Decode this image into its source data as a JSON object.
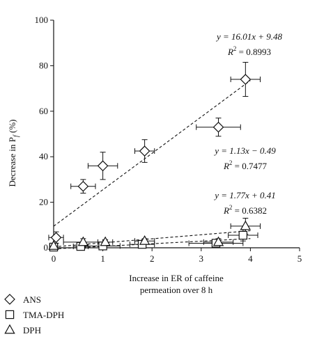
{
  "chart_data": {
    "type": "scatter",
    "xlabel_lines": [
      "Increase in ER of caffeine",
      "permeation over 8 h"
    ],
    "ylabel": "Decrease in P",
    "ylabel_subscript": "f",
    "ylabel_unit": " (%)",
    "xlim": [
      0,
      5
    ],
    "ylim": [
      0,
      100
    ],
    "xticks": [
      "0",
      "1",
      "2",
      "3",
      "4",
      "5"
    ],
    "yticks": [
      "0",
      "20",
      "40",
      "60",
      "80",
      "100"
    ],
    "grid": false,
    "legend_position": "bottom-left",
    "series": [
      {
        "name": "ANS",
        "marker": "diamond",
        "points": [
          {
            "x": 0.05,
            "y": 4.5,
            "xerr": 0.15,
            "yerr": 2.5
          },
          {
            "x": 0.6,
            "y": 27,
            "xerr": 0.25,
            "yerr": 3
          },
          {
            "x": 1.0,
            "y": 36,
            "xerr": 0.3,
            "yerr": 6
          },
          {
            "x": 1.85,
            "y": 42.5,
            "xerr": 0.2,
            "yerr": 5
          },
          {
            "x": 3.35,
            "y": 53,
            "xerr": 0.45,
            "yerr": 4
          },
          {
            "x": 3.9,
            "y": 74,
            "xerr": 0.3,
            "yerr": 7.5
          }
        ],
        "fit": {
          "slope": 16.01,
          "intercept": 9.48,
          "equation": "y = 16.01x + 9.48",
          "r2_label": "R",
          "r2_value": " = 0.8993"
        }
      },
      {
        "name": "TMA-DPH",
        "marker": "square",
        "points": [
          {
            "x": 0.0,
            "y": 0.3,
            "xerr": 0.08,
            "yerr": 0.8
          },
          {
            "x": 0.55,
            "y": 0.6,
            "xerr": 0.15,
            "yerr": 1
          },
          {
            "x": 1.0,
            "y": 0.8,
            "xerr": 0.35,
            "yerr": 1
          },
          {
            "x": 1.8,
            "y": 1.5,
            "xerr": 0.25,
            "yerr": 1
          },
          {
            "x": 3.3,
            "y": 2.0,
            "xerr": 0.55,
            "yerr": 1.5
          },
          {
            "x": 3.85,
            "y": 5.5,
            "xerr": 0.3,
            "yerr": 2.5
          }
        ],
        "fit": {
          "slope": 1.13,
          "intercept": -0.49,
          "equation": "y = 1.13x − 0.49",
          "r2_label": "R",
          "r2_value": " = 0.7477"
        }
      },
      {
        "name": "DPH",
        "marker": "triangle",
        "points": [
          {
            "x": 0.0,
            "y": 0.8,
            "xerr": 0.08,
            "yerr": 0.8
          },
          {
            "x": 0.6,
            "y": 2.5,
            "xerr": 0.4,
            "yerr": 1.5
          },
          {
            "x": 1.05,
            "y": 2.5,
            "xerr": 0.15,
            "yerr": 1
          },
          {
            "x": 1.85,
            "y": 3.0,
            "xerr": 0.2,
            "yerr": 1
          },
          {
            "x": 3.35,
            "y": 2.5,
            "xerr": 0.3,
            "yerr": 1.5
          },
          {
            "x": 3.9,
            "y": 9.5,
            "xerr": 0.3,
            "yerr": 3.5
          }
        ],
        "fit": {
          "slope": 1.77,
          "intercept": 0.41,
          "equation": "y = 1.77x + 0.41",
          "r2_label": "R",
          "r2_value": " = 0.6382"
        }
      }
    ]
  }
}
